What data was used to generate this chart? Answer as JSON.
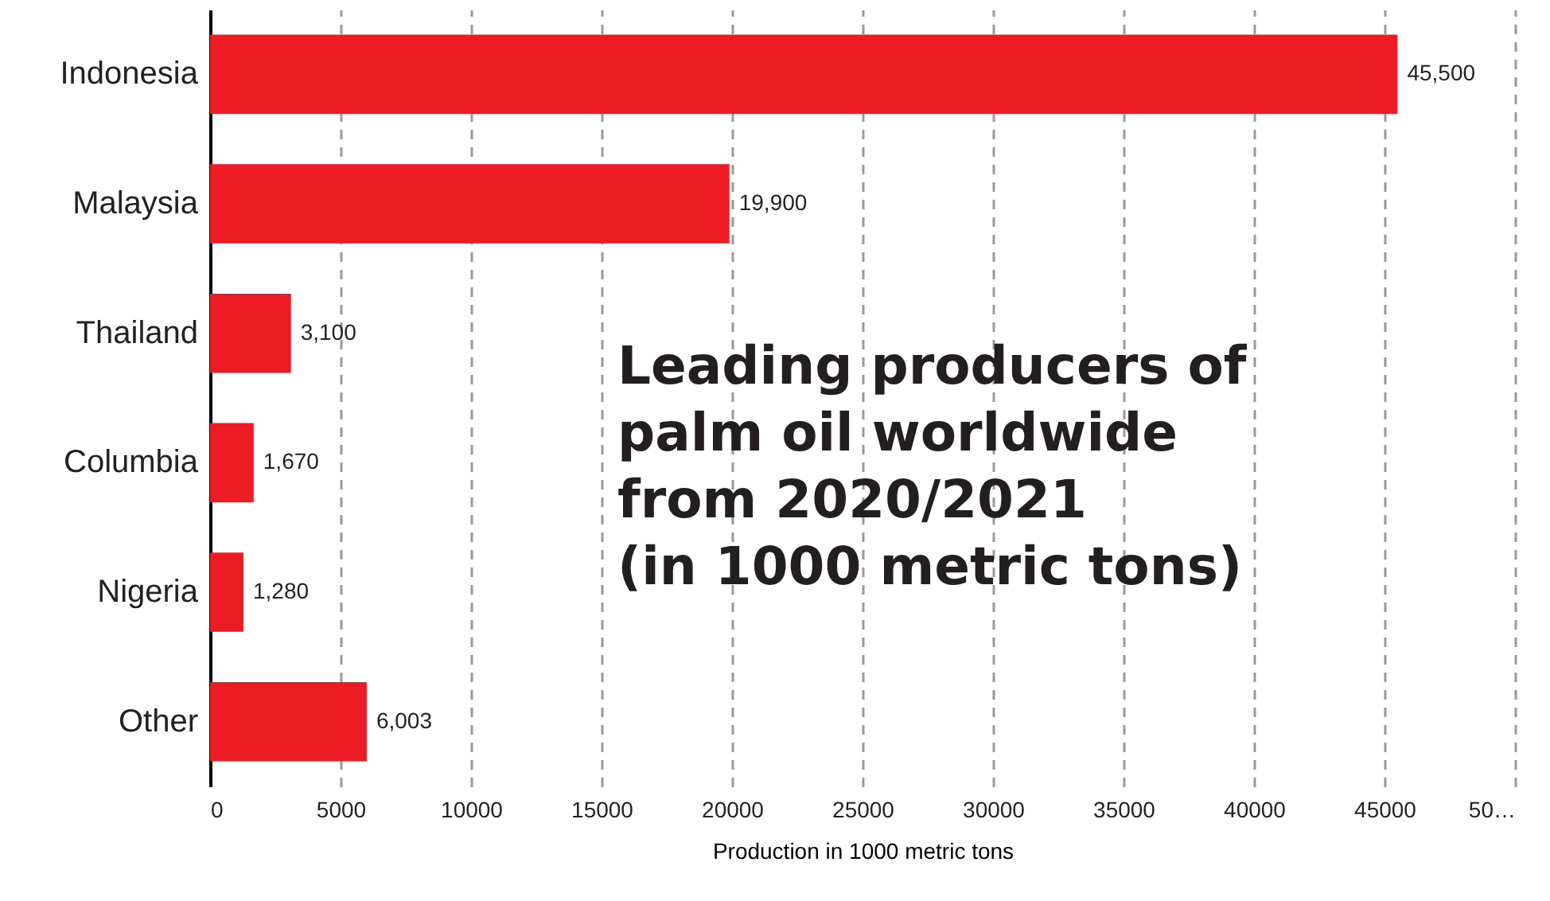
{
  "chart_data": {
    "type": "bar",
    "orientation": "horizontal",
    "title": "Leading producers of\npalm oil worldwide\nfrom 2020/2021\n(in 1000 metric tons)",
    "xlabel": "Production in 1000 metric tons",
    "categories": [
      "Indonesia",
      "Malaysia",
      "Thailand",
      "Columbia",
      "Nigeria",
      "Other"
    ],
    "values": [
      45500,
      19900,
      3100,
      1670,
      1280,
      6003
    ],
    "color": "#ed1c24",
    "xlim": [
      0,
      50000
    ],
    "xticks": [
      0,
      5000,
      10000,
      15000,
      20000,
      25000,
      30000,
      35000,
      40000,
      45000,
      {
        "value": 50000,
        "label": "50…"
      }
    ],
    "value_labels": [
      "45,500",
      "19,900",
      "3,100",
      "1,670",
      "1,280",
      "6,003"
    ],
    "grid": "x"
  }
}
